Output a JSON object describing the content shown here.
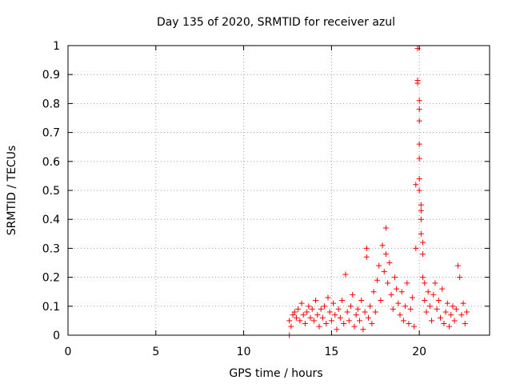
{
  "chart_data": {
    "type": "scatter",
    "title": "Day 135 of 2020, SRMTID for receiver azul",
    "xlabel": "GPS time / hours",
    "ylabel": "SRMTID / TECUs",
    "xlim": [
      0,
      24
    ],
    "ylim": [
      0,
      1
    ],
    "xticks": [
      "0",
      "5",
      "10",
      "15",
      "20"
    ],
    "xtick_values": [
      0,
      5,
      10,
      15,
      20
    ],
    "yticks": [
      "0",
      "0.1",
      "0.2",
      "0.3",
      "0.4",
      "0.5",
      "0.6",
      "0.7",
      "0.8",
      "0.9",
      "1"
    ],
    "ytick_values": [
      0,
      0.1,
      0.2,
      0.3,
      0.4,
      0.5,
      0.6,
      0.7,
      0.8,
      0.9,
      1.0
    ],
    "grid": true,
    "marker": "+",
    "color": "#ff0000",
    "series": [
      {
        "name": "SRMTID",
        "points": [
          [
            12.6,
            0.0
          ],
          [
            12.6,
            0.05
          ],
          [
            12.7,
            0.03
          ],
          [
            12.8,
            0.07
          ],
          [
            12.9,
            0.08
          ],
          [
            13.0,
            0.06
          ],
          [
            13.1,
            0.09
          ],
          [
            13.2,
            0.05
          ],
          [
            13.3,
            0.11
          ],
          [
            13.4,
            0.07
          ],
          [
            13.5,
            0.04
          ],
          [
            13.6,
            0.08
          ],
          [
            13.7,
            0.1
          ],
          [
            13.8,
            0.06
          ],
          [
            13.9,
            0.09
          ],
          [
            14.0,
            0.05
          ],
          [
            14.1,
            0.12
          ],
          [
            14.2,
            0.07
          ],
          [
            14.3,
            0.03
          ],
          [
            14.4,
            0.09
          ],
          [
            14.5,
            0.06
          ],
          [
            14.6,
            0.1
          ],
          [
            14.7,
            0.04
          ],
          [
            14.8,
            0.13
          ],
          [
            14.9,
            0.08
          ],
          [
            15.0,
            0.05
          ],
          [
            15.1,
            0.11
          ],
          [
            15.2,
            0.07
          ],
          [
            15.3,
            0.02
          ],
          [
            15.4,
            0.09
          ],
          [
            15.5,
            0.06
          ],
          [
            15.6,
            0.12
          ],
          [
            15.7,
            0.04
          ],
          [
            15.8,
            0.21
          ],
          [
            15.9,
            0.08
          ],
          [
            16.0,
            0.05
          ],
          [
            16.1,
            0.1
          ],
          [
            16.2,
            0.14
          ],
          [
            16.3,
            0.03
          ],
          [
            16.4,
            0.07
          ],
          [
            16.5,
            0.09
          ],
          [
            16.6,
            0.05
          ],
          [
            16.7,
            0.12
          ],
          [
            16.8,
            0.02
          ],
          [
            16.9,
            0.08
          ],
          [
            17.0,
            0.3
          ],
          [
            17.0,
            0.27
          ],
          [
            17.1,
            0.06
          ],
          [
            17.2,
            0.1
          ],
          [
            17.3,
            0.04
          ],
          [
            17.4,
            0.15
          ],
          [
            17.5,
            0.08
          ],
          [
            17.6,
            0.19
          ],
          [
            17.7,
            0.24
          ],
          [
            17.8,
            0.12
          ],
          [
            17.9,
            0.31
          ],
          [
            18.0,
            0.22
          ],
          [
            18.1,
            0.37
          ],
          [
            18.1,
            0.28
          ],
          [
            18.2,
            0.18
          ],
          [
            18.3,
            0.25
          ],
          [
            18.4,
            0.14
          ],
          [
            18.5,
            0.09
          ],
          [
            18.6,
            0.2
          ],
          [
            18.7,
            0.16
          ],
          [
            18.8,
            0.11
          ],
          [
            18.9,
            0.07
          ],
          [
            19.0,
            0.15
          ],
          [
            19.1,
            0.05
          ],
          [
            19.2,
            0.1
          ],
          [
            19.3,
            0.18
          ],
          [
            19.4,
            0.04
          ],
          [
            19.5,
            0.09
          ],
          [
            19.6,
            0.13
          ],
          [
            19.7,
            0.03
          ],
          [
            19.8,
            0.3
          ],
          [
            19.8,
            0.52
          ],
          [
            19.9,
            0.99
          ],
          [
            19.9,
            0.88
          ],
          [
            19.9,
            0.87
          ],
          [
            20.0,
            0.81
          ],
          [
            20.0,
            0.78
          ],
          [
            20.0,
            0.74
          ],
          [
            20.0,
            0.66
          ],
          [
            20.0,
            0.61
          ],
          [
            20.0,
            0.54
          ],
          [
            20.0,
            0.5
          ],
          [
            20.1,
            0.45
          ],
          [
            20.1,
            0.43
          ],
          [
            20.1,
            0.4
          ],
          [
            20.1,
            0.35
          ],
          [
            20.2,
            0.32
          ],
          [
            20.2,
            0.28
          ],
          [
            20.2,
            0.2
          ],
          [
            20.3,
            0.18
          ],
          [
            20.3,
            0.12
          ],
          [
            20.4,
            0.08
          ],
          [
            20.5,
            0.15
          ],
          [
            20.6,
            0.1
          ],
          [
            20.7,
            0.05
          ],
          [
            20.8,
            0.14
          ],
          [
            20.9,
            0.18
          ],
          [
            21.0,
            0.09
          ],
          [
            21.1,
            0.12
          ],
          [
            21.2,
            0.06
          ],
          [
            21.3,
            0.16
          ],
          [
            21.4,
            0.04
          ],
          [
            21.5,
            0.08
          ],
          [
            21.6,
            0.11
          ],
          [
            21.7,
            0.03
          ],
          [
            21.8,
            0.07
          ],
          [
            21.9,
            0.1
          ],
          [
            22.0,
            0.05
          ],
          [
            22.1,
            0.09
          ],
          [
            22.2,
            0.24
          ],
          [
            22.3,
            0.2
          ],
          [
            22.4,
            0.07
          ],
          [
            22.5,
            0.11
          ],
          [
            22.6,
            0.04
          ],
          [
            22.7,
            0.08
          ]
        ]
      }
    ]
  }
}
